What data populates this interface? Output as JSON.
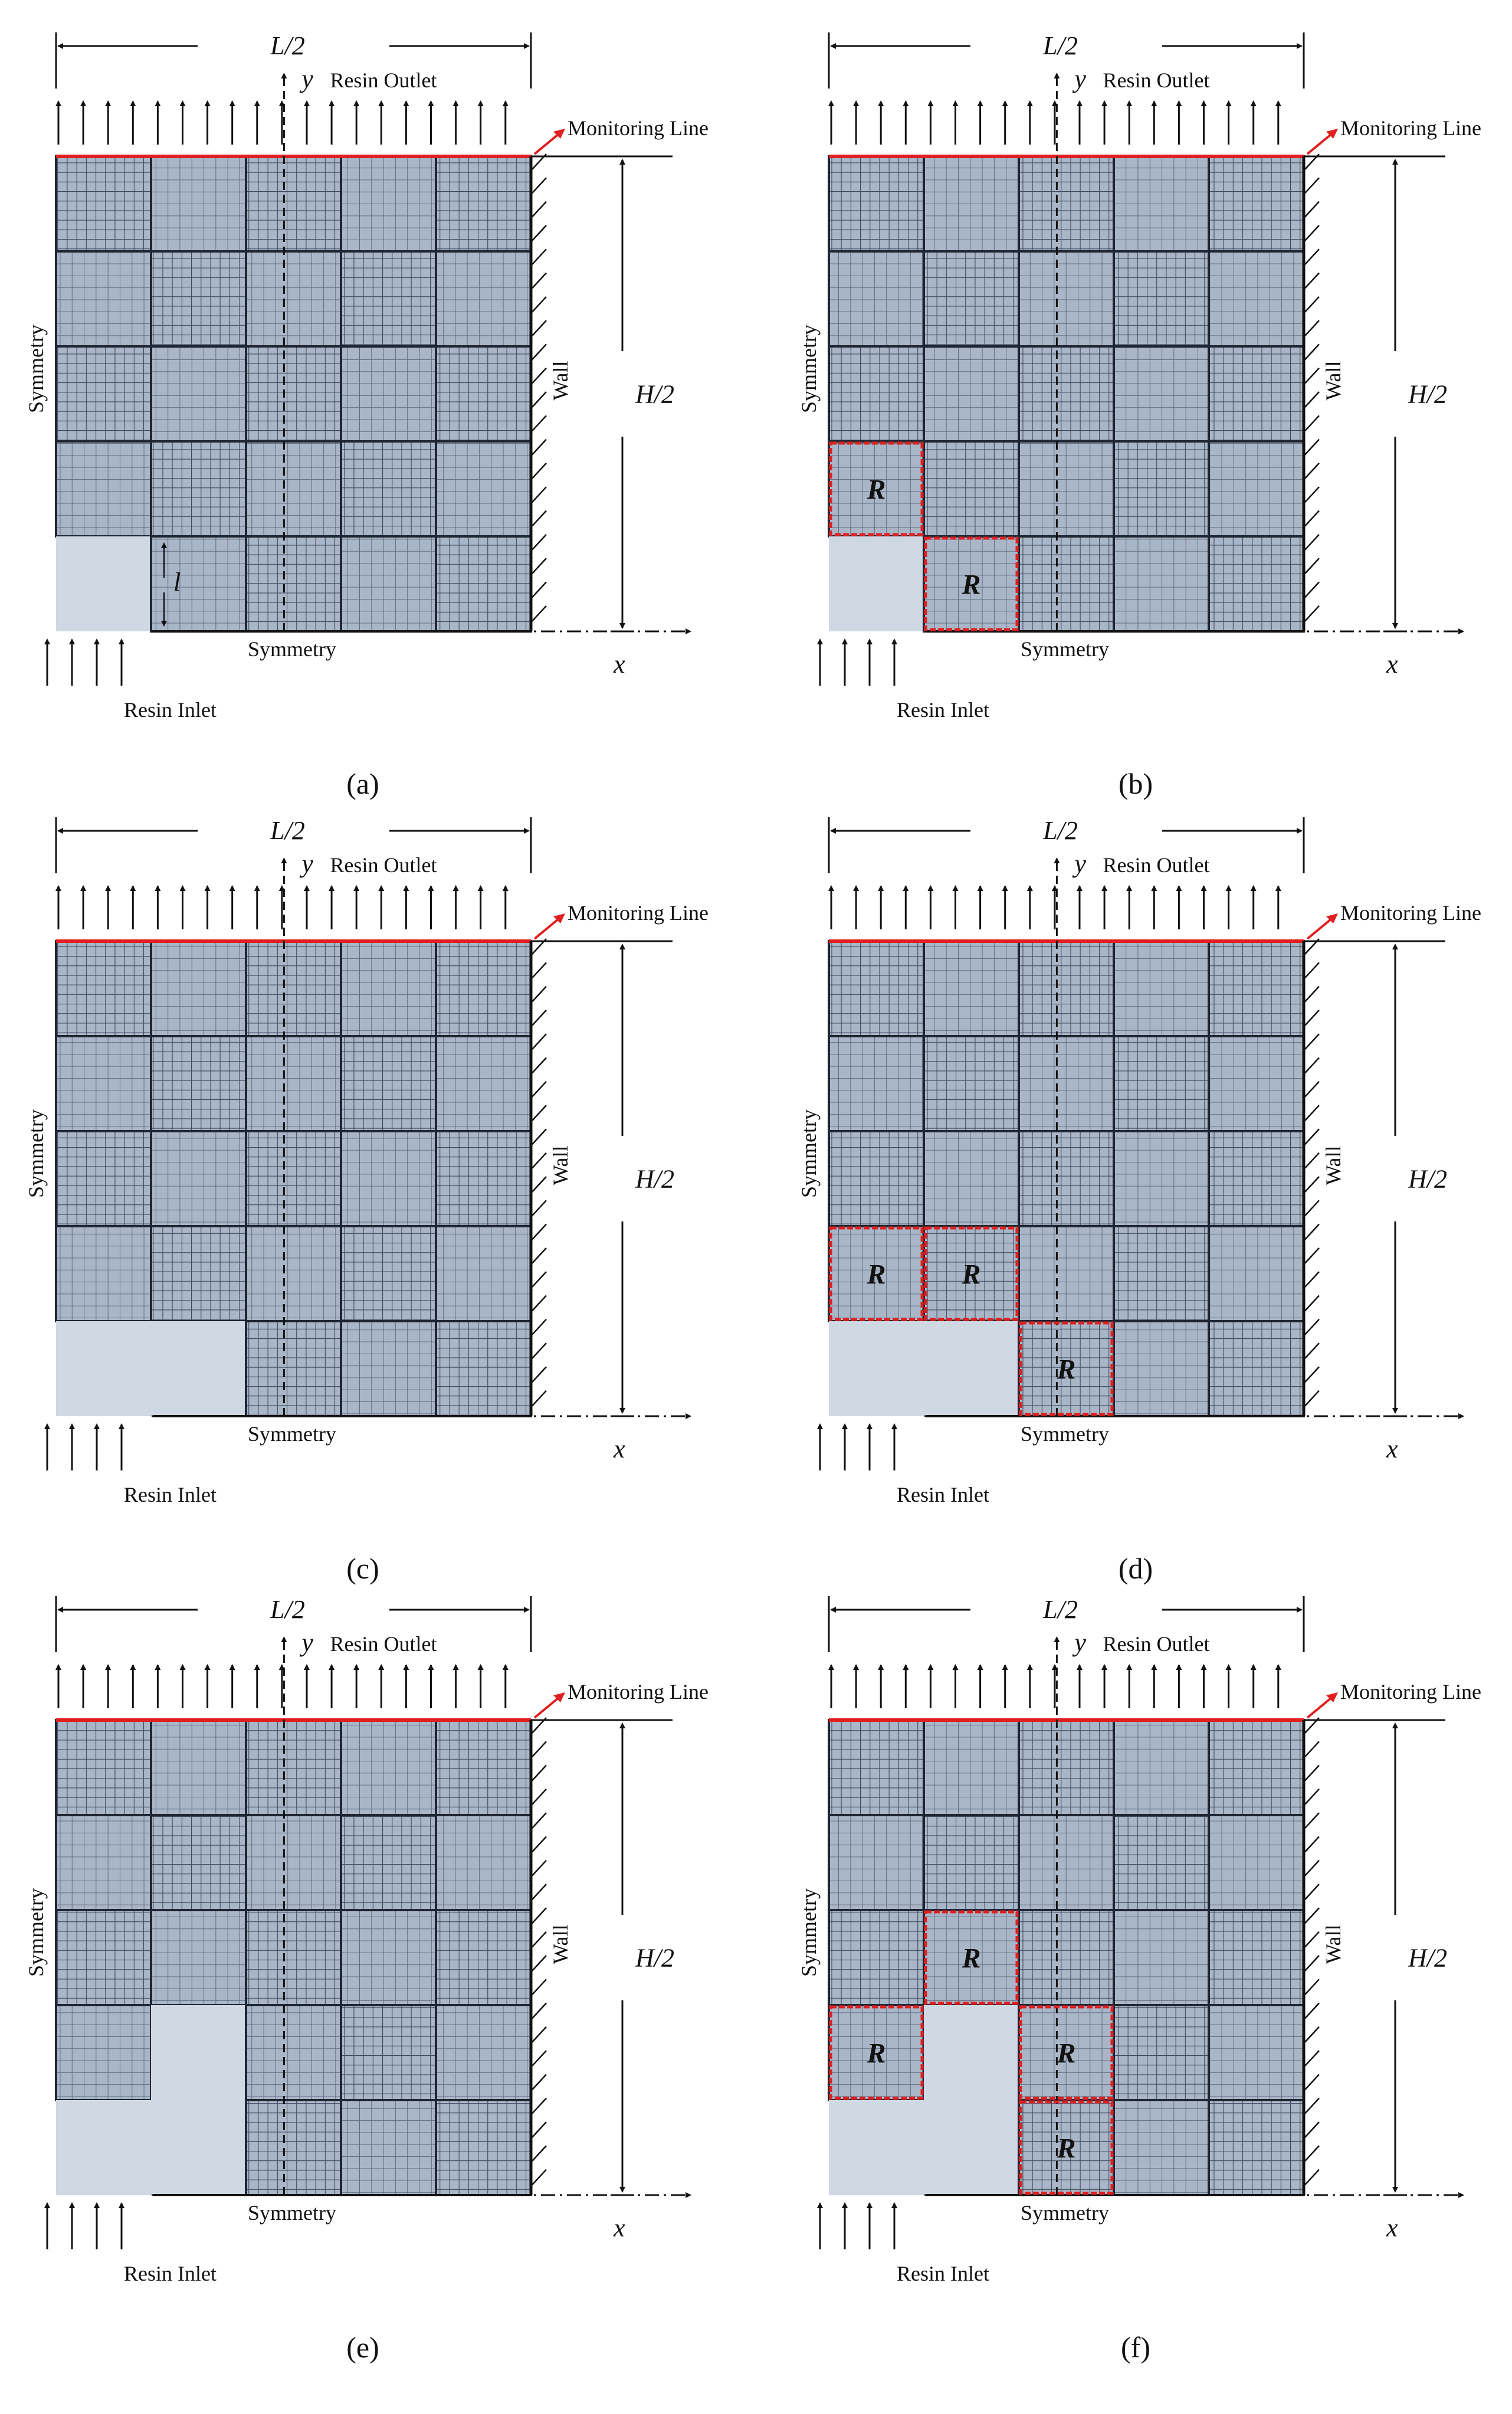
{
  "figure": {
    "labels": {
      "length": "L/2",
      "height": "H/2",
      "outlet": "Resin Outlet",
      "inlet": "Resin Inlet",
      "monitor": "Monitoring Line",
      "wall": "Wall",
      "sym_left": "Symmetry",
      "sym_bottom": "Symmetry",
      "x_axis": "x",
      "y_axis": "y",
      "cell_size": "l",
      "region": "R"
    },
    "colors": {
      "preform": "#a9b6c8",
      "mesh_fine": "#3d4a5e",
      "mesh_coarse": "#5a677a",
      "empty": "#cfd8e3",
      "monitor": "#e02020",
      "region_outline": "#e02020",
      "ink": "#111111"
    },
    "grid": {
      "rows": 5,
      "cols": 5
    },
    "panels": [
      {
        "caption": "(a)",
        "empty_cells": [
          [
            4,
            0
          ]
        ],
        "r_cells": [],
        "show_l": true
      },
      {
        "caption": "(b)",
        "empty_cells": [
          [
            4,
            0
          ]
        ],
        "r_cells": [
          [
            3,
            0
          ],
          [
            4,
            1
          ]
        ],
        "show_l": false
      },
      {
        "caption": "(c)",
        "empty_cells": [
          [
            4,
            0
          ],
          [
            4,
            1
          ]
        ],
        "r_cells": [],
        "show_l": false
      },
      {
        "caption": "(d)",
        "empty_cells": [
          [
            4,
            0
          ],
          [
            4,
            1
          ]
        ],
        "r_cells": [
          [
            3,
            0
          ],
          [
            3,
            1
          ],
          [
            4,
            2
          ]
        ],
        "show_l": false
      },
      {
        "caption": "(e)",
        "empty_cells": [
          [
            3,
            1
          ],
          [
            4,
            0
          ],
          [
            4,
            1
          ]
        ],
        "r_cells": [],
        "show_l": false
      },
      {
        "caption": "(f)",
        "empty_cells": [
          [
            3,
            1
          ],
          [
            4,
            0
          ],
          [
            4,
            1
          ]
        ],
        "r_cells": [
          [
            2,
            1
          ],
          [
            3,
            0
          ],
          [
            3,
            2
          ],
          [
            4,
            2
          ]
        ],
        "show_l": false
      }
    ]
  }
}
